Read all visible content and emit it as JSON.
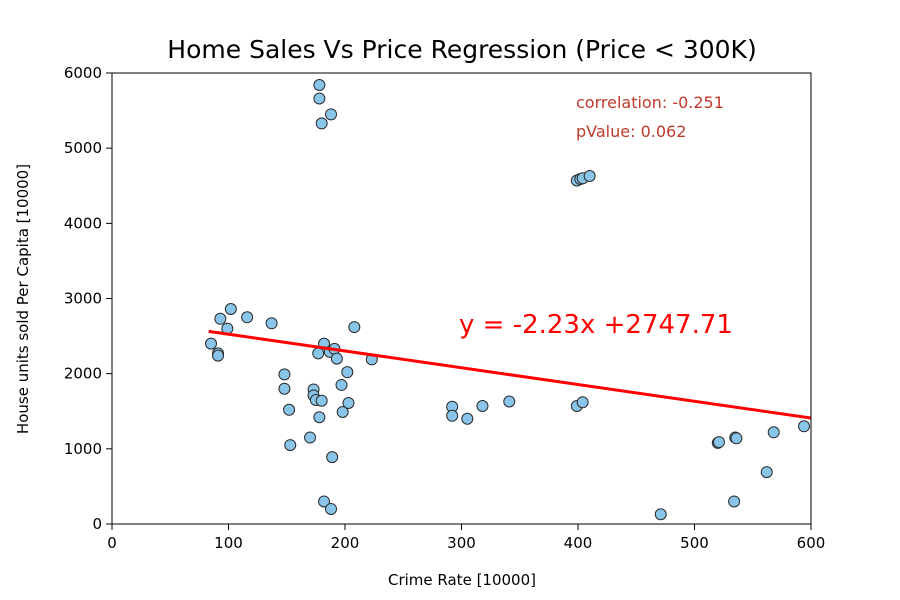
{
  "chart_data": {
    "type": "scatter",
    "title": "Home Sales Vs Price Regression (Price < 300K)",
    "xlabel": "Crime Rate  [10000]",
    "ylabel": "House units sold Per Capita [10000]",
    "xlim": [
      0,
      600
    ],
    "ylim": [
      0,
      6000
    ],
    "xticks": [
      0,
      100,
      200,
      300,
      400,
      500,
      600
    ],
    "yticks": [
      0,
      1000,
      2000,
      3000,
      4000,
      5000,
      6000
    ],
    "grid": false,
    "points": [
      [
        178,
        5840
      ],
      [
        178,
        5660
      ],
      [
        180,
        5330
      ],
      [
        188,
        5450
      ],
      [
        399,
        4570
      ],
      [
        402,
        4590
      ],
      [
        404,
        4600
      ],
      [
        410,
        4630
      ],
      [
        85,
        2400
      ],
      [
        91,
        2270
      ],
      [
        91,
        2240
      ],
      [
        93,
        2730
      ],
      [
        99,
        2600
      ],
      [
        102,
        2860
      ],
      [
        116,
        2750
      ],
      [
        137,
        2670
      ],
      [
        148,
        1990
      ],
      [
        148,
        1800
      ],
      [
        152,
        1520
      ],
      [
        153,
        1050
      ],
      [
        170,
        1150
      ],
      [
        173,
        1790
      ],
      [
        173,
        1710
      ],
      [
        175,
        1650
      ],
      [
        177,
        2270
      ],
      [
        178,
        1420
      ],
      [
        180,
        1640
      ],
      [
        182,
        2400
      ],
      [
        182,
        300
      ],
      [
        187,
        2290
      ],
      [
        188,
        200
      ],
      [
        189,
        890
      ],
      [
        191,
        2330
      ],
      [
        193,
        2200
      ],
      [
        197,
        1850
      ],
      [
        198,
        1490
      ],
      [
        202,
        2020
      ],
      [
        203,
        1610
      ],
      [
        208,
        2620
      ],
      [
        223,
        2190
      ],
      [
        292,
        1560
      ],
      [
        292,
        1440
      ],
      [
        305,
        1400
      ],
      [
        318,
        1570
      ],
      [
        341,
        1630
      ],
      [
        399,
        1570
      ],
      [
        404,
        1620
      ],
      [
        471,
        130
      ],
      [
        520,
        1080
      ],
      [
        521,
        1090
      ],
      [
        534,
        300
      ],
      [
        535,
        1150
      ],
      [
        536,
        1140
      ],
      [
        562,
        690
      ],
      [
        568,
        1220
      ],
      [
        594,
        1300
      ]
    ],
    "marker_color": "#89c5e8",
    "marker_edge": "#2b2b2b",
    "regression": {
      "slope": -2.23,
      "intercept": 2747.71,
      "x_range": [
        83,
        600
      ],
      "color": "#ff0000",
      "equation": "y = -2.23x +2747.71"
    },
    "annotations": {
      "correlation": "correlation: -0.251",
      "pvalue": "pValue: 0.062"
    }
  }
}
